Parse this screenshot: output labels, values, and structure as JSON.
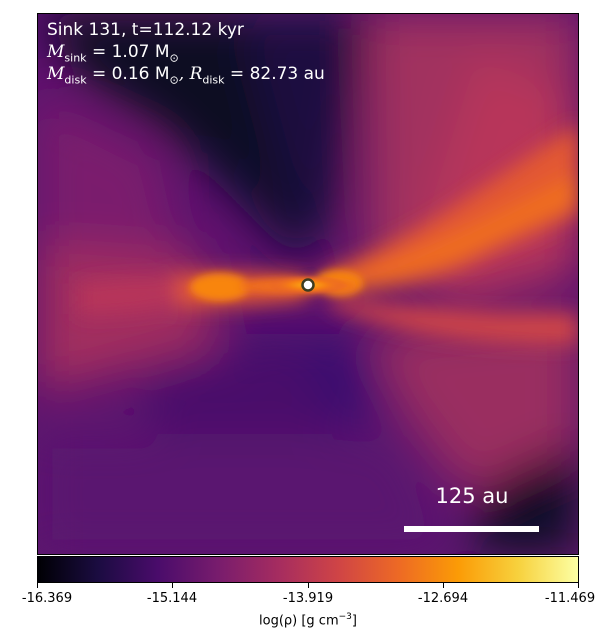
{
  "panel": {
    "title_line": "Sink 131, t=112.12 kyr",
    "sink_mass_label": "M",
    "sink_mass_sub": "sink",
    "sink_mass_value": " = 1.07 M",
    "sun_symbol": "⊙",
    "disk_mass_label": "M",
    "disk_mass_sub": "disk",
    "disk_mass_value": " = 0.16 M",
    "disk_radius_label": ", R",
    "disk_radius_sub": "disk",
    "disk_radius_value": " = 82.73 au",
    "scale_bar_label": "125 au"
  },
  "colorbar": {
    "colormap": "inferno",
    "vmin": -16.369,
    "vmax": -11.469,
    "ticks": [
      "-16.369",
      "-15.144",
      "-13.919",
      "-12.694",
      "-11.469"
    ],
    "label_text": "log(ρ) [g cm",
    "label_exp": "−3",
    "label_close": "]"
  },
  "colors": {
    "sink_marker_fill": "#ffffff",
    "sink_marker_ring": "#3c3c20",
    "overlay_text": "#ffffff"
  }
}
